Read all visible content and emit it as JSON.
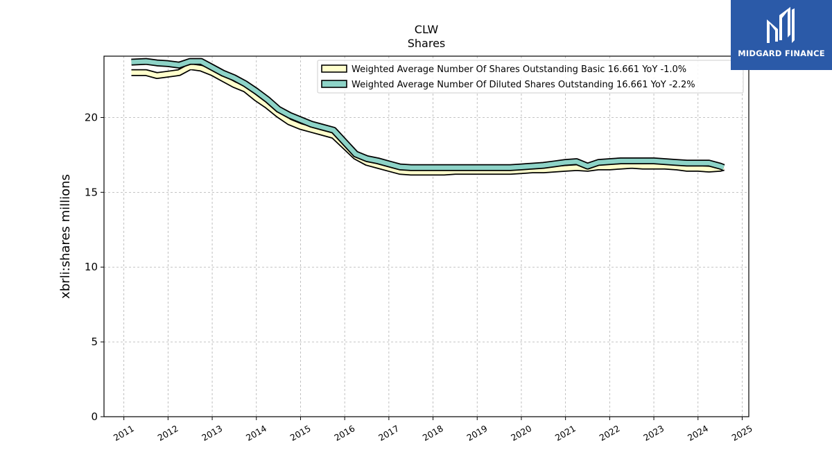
{
  "chart_data": {
    "type": "line",
    "title": "CLW",
    "subtitle": "Shares",
    "xlabel": "",
    "ylabel": "xbrli:shares millions",
    "ylim": [
      0,
      24.1
    ],
    "xlim": [
      2010.55,
      2025.15
    ],
    "x_ticks": [
      2011,
      2012,
      2013,
      2014,
      2015,
      2016,
      2017,
      2018,
      2019,
      2020,
      2021,
      2022,
      2023,
      2024,
      2025
    ],
    "x_tick_labels": [
      "2011",
      "2012",
      "2013",
      "2014",
      "2015",
      "2016",
      "2017",
      "2018",
      "2019",
      "2020",
      "2021",
      "2022",
      "2023",
      "2024",
      "2025"
    ],
    "y_ticks": [
      0,
      5,
      10,
      15,
      20
    ],
    "y_tick_labels": [
      "0",
      "5",
      "10",
      "15",
      "20"
    ],
    "grid": true,
    "legend_position": "top-right",
    "series": [
      {
        "name": "Weighted Average Number Of Shares Outstanding Basic  16.661 YoY -1.0%",
        "color": "#ffffcc",
        "x": [
          2011.17,
          2011.5,
          2011.75,
          2012.0,
          2012.25,
          2012.5,
          2012.75,
          2013.0,
          2013.25,
          2013.5,
          2013.75,
          2014.0,
          2014.25,
          2014.5,
          2014.75,
          2015.0,
          2015.25,
          2015.5,
          2015.75,
          2016.0,
          2016.25,
          2016.5,
          2016.75,
          2017.0,
          2017.25,
          2017.5,
          2017.75,
          2018.0,
          2018.25,
          2018.5,
          2018.75,
          2019.0,
          2019.25,
          2019.5,
          2019.75,
          2020.0,
          2020.25,
          2020.5,
          2020.75,
          2021.0,
          2021.25,
          2021.5,
          2021.75,
          2022.0,
          2022.25,
          2022.5,
          2022.75,
          2023.0,
          2023.25,
          2023.5,
          2023.75,
          2024.0,
          2024.25,
          2024.5,
          2024.58
        ],
        "values": [
          23.0,
          23.0,
          22.8,
          22.9,
          23.0,
          23.4,
          23.3,
          23.0,
          22.6,
          22.2,
          21.9,
          21.3,
          20.8,
          20.2,
          19.7,
          19.4,
          19.2,
          19.0,
          18.8,
          18.1,
          17.4,
          17.0,
          16.8,
          16.6,
          16.4,
          16.35,
          16.35,
          16.35,
          16.35,
          16.4,
          16.4,
          16.4,
          16.4,
          16.4,
          16.4,
          16.45,
          16.5,
          16.5,
          16.55,
          16.6,
          16.65,
          16.6,
          16.7,
          16.7,
          16.75,
          16.8,
          16.75,
          16.75,
          16.75,
          16.7,
          16.6,
          16.6,
          16.55,
          16.6,
          16.661
        ]
      },
      {
        "name": "Weighted Average Number Of Diluted Shares Outstanding  16.661 YoY -2.2%",
        "color": "#8dd3c7",
        "x": [
          2011.17,
          2011.5,
          2011.75,
          2012.0,
          2012.25,
          2012.5,
          2012.75,
          2013.0,
          2013.25,
          2013.5,
          2013.75,
          2014.0,
          2014.25,
          2014.5,
          2014.75,
          2015.0,
          2015.25,
          2015.5,
          2015.75,
          2016.0,
          2016.25,
          2016.5,
          2016.75,
          2017.0,
          2017.25,
          2017.5,
          2017.75,
          2018.0,
          2018.25,
          2018.5,
          2018.75,
          2019.0,
          2019.25,
          2019.5,
          2019.75,
          2020.0,
          2020.25,
          2020.5,
          2020.75,
          2021.0,
          2021.25,
          2021.5,
          2021.75,
          2022.0,
          2022.25,
          2022.5,
          2022.75,
          2023.0,
          2023.25,
          2023.5,
          2023.75,
          2024.0,
          2024.25,
          2024.5,
          2024.58
        ],
        "values": [
          23.7,
          23.75,
          23.65,
          23.6,
          23.5,
          23.75,
          23.75,
          23.35,
          22.95,
          22.65,
          22.25,
          21.75,
          21.2,
          20.55,
          20.15,
          19.85,
          19.55,
          19.35,
          19.15,
          18.35,
          17.55,
          17.25,
          17.1,
          16.9,
          16.7,
          16.65,
          16.65,
          16.65,
          16.65,
          16.65,
          16.65,
          16.65,
          16.65,
          16.65,
          16.65,
          16.7,
          16.75,
          16.8,
          16.9,
          17.0,
          17.05,
          16.75,
          17.0,
          17.05,
          17.1,
          17.1,
          17.1,
          17.1,
          17.05,
          17.0,
          16.95,
          16.95,
          16.95,
          16.75,
          16.661
        ]
      }
    ]
  },
  "logo": {
    "text": "MIDGARD FINANCE",
    "background": "#2b5aa8"
  }
}
